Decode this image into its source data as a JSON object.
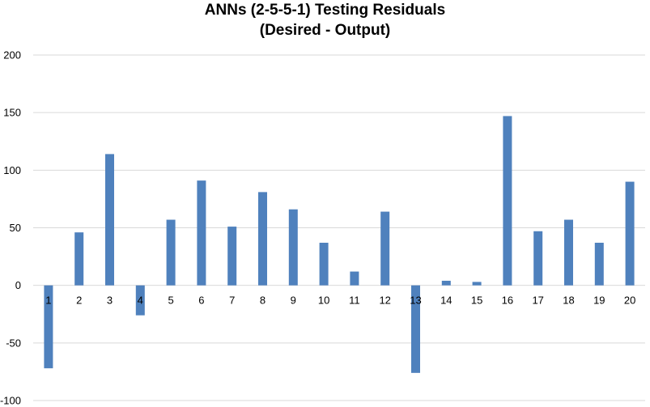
{
  "chart_data": {
    "type": "bar",
    "title_lines": [
      "ANNs (2-5-5-1) Testing Residuals",
      "(Desired - Output)"
    ],
    "xlabel": "",
    "ylabel": "",
    "categories": [
      "1",
      "2",
      "3",
      "4",
      "5",
      "6",
      "7",
      "8",
      "9",
      "10",
      "11",
      "12",
      "13",
      "14",
      "15",
      "16",
      "17",
      "18",
      "19",
      "20"
    ],
    "values": [
      -72,
      46,
      114,
      -26,
      57,
      91,
      51,
      81,
      66,
      37,
      12,
      64,
      -76,
      4,
      3,
      147,
      47,
      57,
      37,
      90
    ],
    "ylim": [
      -100,
      200
    ],
    "yticks": [
      "200",
      "150",
      "100",
      "50",
      "0",
      "-50",
      "-100"
    ],
    "ytick_values": [
      200,
      150,
      100,
      50,
      0,
      -50,
      -100
    ],
    "grid": true,
    "legend": "none",
    "bar_color": "#4f81bd"
  }
}
